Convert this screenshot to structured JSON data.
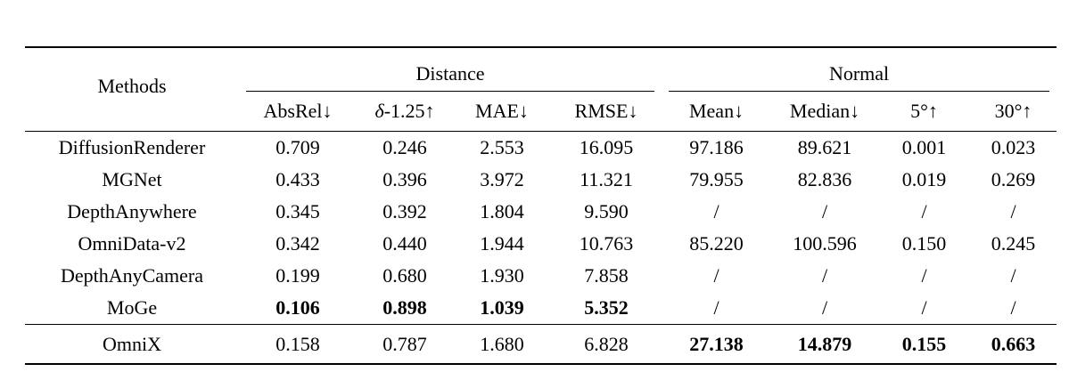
{
  "page": {
    "background_color": "#ffffff",
    "text_color": "#000000",
    "rule_color": "#000000"
  },
  "table": {
    "methods_header": "Methods",
    "groups": [
      {
        "label": "Distance",
        "subcolumns": [
          {
            "it": "",
            "rest": "AbsRel↓"
          },
          {
            "it": "δ",
            "rest": "-1.25↑"
          },
          {
            "it": "",
            "rest": "MAE↓"
          },
          {
            "it": "",
            "rest": "RMSE↓"
          }
        ]
      },
      {
        "label": "Normal",
        "subcolumns": [
          {
            "it": "",
            "rest": "Mean↓"
          },
          {
            "it": "",
            "rest": "Median↓"
          },
          {
            "it": "",
            "rest": "5°↑"
          },
          {
            "it": "",
            "rest": "30°↑"
          }
        ]
      }
    ],
    "rows": [
      {
        "method": "DiffusionRenderer",
        "values": [
          "0.709",
          "0.246",
          "2.553",
          "16.095",
          "97.186",
          "89.621",
          "0.001",
          "0.023"
        ],
        "bold": [
          false,
          false,
          false,
          false,
          false,
          false,
          false,
          false
        ]
      },
      {
        "method": "MGNet",
        "values": [
          "0.433",
          "0.396",
          "3.972",
          "11.321",
          "79.955",
          "82.836",
          "0.019",
          "0.269"
        ],
        "bold": [
          false,
          false,
          false,
          false,
          false,
          false,
          false,
          false
        ]
      },
      {
        "method": "DepthAnywhere",
        "values": [
          "0.345",
          "0.392",
          "1.804",
          "9.590",
          "/",
          "/",
          "/",
          "/"
        ],
        "bold": [
          false,
          false,
          false,
          false,
          false,
          false,
          false,
          false
        ]
      },
      {
        "method": "OmniData-v2",
        "values": [
          "0.342",
          "0.440",
          "1.944",
          "10.763",
          "85.220",
          "100.596",
          "0.150",
          "0.245"
        ],
        "bold": [
          false,
          false,
          false,
          false,
          false,
          false,
          false,
          false
        ]
      },
      {
        "method": "DepthAnyCamera",
        "values": [
          "0.199",
          "0.680",
          "1.930",
          "7.858",
          "/",
          "/",
          "/",
          "/"
        ],
        "bold": [
          false,
          false,
          false,
          false,
          false,
          false,
          false,
          false
        ]
      },
      {
        "method": "MoGe",
        "values": [
          "0.106",
          "0.898",
          "1.039",
          "5.352",
          "/",
          "/",
          "/",
          "/"
        ],
        "bold": [
          true,
          true,
          true,
          true,
          false,
          false,
          false,
          false
        ]
      }
    ],
    "separated_row": {
      "method": "OmniX",
      "values": [
        "0.158",
        "0.787",
        "1.680",
        "6.828",
        "27.138",
        "14.879",
        "0.155",
        "0.663"
      ],
      "bold": [
        false,
        false,
        false,
        false,
        true,
        true,
        true,
        true
      ]
    }
  }
}
